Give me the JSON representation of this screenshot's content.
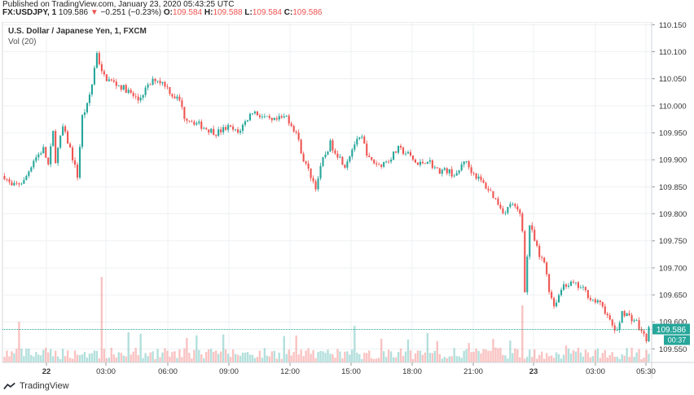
{
  "header": {
    "published": "Published on TradingView.com, January 23, 2020 05:43:25 UTC",
    "symbol": "FX:USDJPY, 1",
    "last": "109.586",
    "change": "−0.251 (−0.23%)",
    "o_label": "O:",
    "o_value": "109.584",
    "h_label": "H:",
    "h_value": "109.588",
    "l_label": "L:",
    "l_value": "109.584",
    "c_label": "C:",
    "c_value": "109.586"
  },
  "overlay": {
    "title": "U.S. Dollar / Japanese Yen, 1, FXCM",
    "volume": "Vol (20)"
  },
  "footer": {
    "brand": "TradingView"
  },
  "colors": {
    "up": "#26a69a",
    "down": "#ef5350",
    "grid": "#eef0f3",
    "axis": "#cfd3d8",
    "price_line": "#26a69a"
  },
  "chart_data": {
    "type": "candlestick",
    "symbol": "USDJPY",
    "interval": "1",
    "x_ticks": [
      "22",
      "03:00",
      "06:00",
      "09:00",
      "12:00",
      "15:00",
      "18:00",
      "21:00",
      "23",
      "03:00",
      "05:30"
    ],
    "y_ticks": [
      "110.150",
      "110.100",
      "110.050",
      "110.000",
      "109.950",
      "109.900",
      "109.850",
      "109.800",
      "109.750",
      "109.700",
      "109.650",
      "109.600",
      "109.550"
    ],
    "ylim": [
      109.525,
      110.155
    ],
    "current_price": "109.586",
    "countdown": "00:37",
    "path": [
      [
        0,
        109.87
      ],
      [
        3,
        109.85
      ],
      [
        8,
        109.86
      ],
      [
        12,
        109.9
      ],
      [
        16,
        109.92
      ],
      [
        18,
        109.89
      ],
      [
        20,
        109.95
      ],
      [
        21,
        109.9
      ],
      [
        24,
        109.96
      ],
      [
        27,
        109.92
      ],
      [
        30,
        109.87
      ],
      [
        32,
        109.98
      ],
      [
        34,
        110.0
      ],
      [
        36,
        110.04
      ],
      [
        38,
        110.1
      ],
      [
        40,
        110.06
      ],
      [
        42,
        110.05
      ],
      [
        46,
        110.04
      ],
      [
        50,
        110.03
      ],
      [
        55,
        110.01
      ],
      [
        58,
        110.03
      ],
      [
        62,
        110.05
      ],
      [
        66,
        110.04
      ],
      [
        69,
        110.02
      ],
      [
        72,
        110.01
      ],
      [
        74,
        109.98
      ],
      [
        78,
        109.97
      ],
      [
        82,
        109.96
      ],
      [
        87,
        109.95
      ],
      [
        92,
        109.96
      ],
      [
        96,
        109.95
      ],
      [
        99,
        109.97
      ],
      [
        102,
        109.99
      ],
      [
        106,
        109.98
      ],
      [
        110,
        109.97
      ],
      [
        116,
        109.98
      ],
      [
        120,
        109.95
      ],
      [
        123,
        109.9
      ],
      [
        125,
        109.88
      ],
      [
        128,
        109.85
      ],
      [
        131,
        109.9
      ],
      [
        134,
        109.93
      ],
      [
        137,
        109.91
      ],
      [
        140,
        109.89
      ],
      [
        144,
        109.93
      ],
      [
        147,
        109.94
      ],
      [
        150,
        109.9
      ],
      [
        154,
        109.89
      ],
      [
        158,
        109.9
      ],
      [
        162,
        109.92
      ],
      [
        166,
        109.91
      ],
      [
        170,
        109.89
      ],
      [
        174,
        109.9
      ],
      [
        178,
        109.88
      ],
      [
        182,
        109.88
      ],
      [
        186,
        109.87
      ],
      [
        189,
        109.9
      ],
      [
        192,
        109.88
      ],
      [
        196,
        109.86
      ],
      [
        200,
        109.84
      ],
      [
        203,
        109.82
      ],
      [
        206,
        109.8
      ],
      [
        208,
        109.82
      ],
      [
        210,
        109.81
      ],
      [
        212,
        109.8
      ],
      [
        213,
        109.77
      ],
      [
        214,
        109.66
      ],
      [
        215,
        109.72
      ],
      [
        216,
        109.78
      ],
      [
        218,
        109.75
      ],
      [
        220,
        109.72
      ],
      [
        222,
        109.71
      ],
      [
        223,
        109.69
      ],
      [
        224,
        109.66
      ],
      [
        226,
        109.63
      ],
      [
        228,
        109.65
      ],
      [
        230,
        109.67
      ],
      [
        234,
        109.67
      ],
      [
        238,
        109.66
      ],
      [
        242,
        109.64
      ],
      [
        246,
        109.63
      ],
      [
        249,
        109.6
      ],
      [
        252,
        109.58
      ],
      [
        254,
        109.62
      ],
      [
        257,
        109.61
      ],
      [
        260,
        109.6
      ],
      [
        262,
        109.58
      ],
      [
        264,
        109.57
      ],
      [
        265,
        109.586
      ]
    ],
    "volume_ylim": [
      0,
      1.2
    ]
  }
}
